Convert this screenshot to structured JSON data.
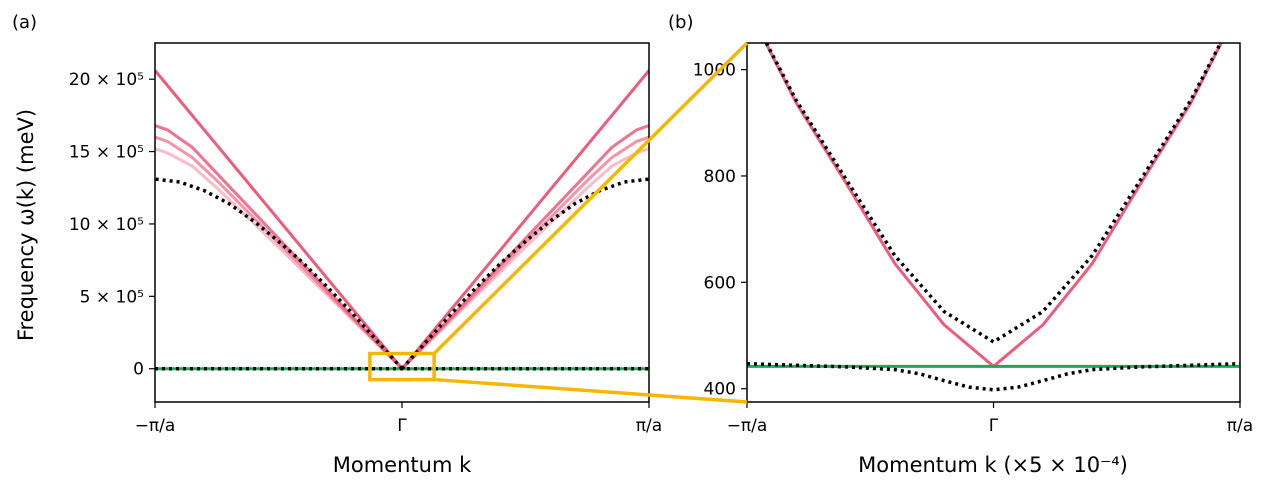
{
  "chart_data": [
    {
      "panel": "(a)",
      "type": "line",
      "xlabel": "Momentum k",
      "ylabel": "Frequency ω(k) (meV)",
      "ylim": [
        -230000,
        2250000
      ],
      "x_ticks": [
        {
          "value": -1,
          "label": "−π/a"
        },
        {
          "value": 0,
          "label": "Γ"
        },
        {
          "value": 1,
          "label": "π/a"
        }
      ],
      "y_ticks": [
        {
          "value": 0,
          "label": "0"
        },
        {
          "value": 500000,
          "label": "5 × 10⁵"
        },
        {
          "value": 1000000,
          "label": "10 × 10⁵"
        },
        {
          "value": 1500000,
          "label": "15 × 10⁵"
        },
        {
          "value": 2000000,
          "label": "20 × 10⁵"
        }
      ],
      "colors": {
        "pink": "#ef5b7b",
        "green": "#1aaa55",
        "dotted": "#000000",
        "zoom_box": "#f5b700"
      },
      "series": [
        {
          "style": "pink",
          "opacity": 1.0,
          "k": [
            0,
            0.25,
            0.5,
            0.75,
            1.0
          ],
          "values": [
            0,
            515000,
            1030000,
            1545000,
            2060000
          ]
        },
        {
          "style": "pink",
          "opacity": 0.85,
          "k": [
            0,
            0.25,
            0.5,
            0.75,
            0.85,
            0.95,
            1.0
          ],
          "values": [
            0,
            450000,
            900000,
            1350000,
            1530000,
            1650000,
            1680000
          ]
        },
        {
          "style": "pink",
          "opacity": 0.65,
          "k": [
            0,
            0.25,
            0.5,
            0.75,
            0.85,
            0.95,
            1.0
          ],
          "values": [
            0,
            435000,
            870000,
            1300000,
            1460000,
            1570000,
            1600000
          ]
        },
        {
          "style": "pink",
          "opacity": 0.4,
          "k": [
            0,
            0.25,
            0.5,
            0.75,
            0.85,
            0.95,
            1.0
          ],
          "values": [
            0,
            420000,
            840000,
            1250000,
            1400000,
            1490000,
            1520000
          ]
        },
        {
          "style": "dotted",
          "k": [
            0,
            0.1,
            0.2,
            0.3,
            0.4,
            0.5,
            0.6,
            0.7,
            0.8,
            0.9,
            1.0
          ],
          "values": [
            0,
            190000,
            380000,
            560000,
            730000,
            880000,
            1020000,
            1140000,
            1230000,
            1290000,
            1310000
          ]
        },
        {
          "style": "green",
          "k": [
            -1,
            1
          ],
          "values": [
            0,
            0
          ]
        },
        {
          "style": "dotted",
          "k": [
            -1,
            1
          ],
          "values": [
            0,
            0
          ]
        }
      ]
    },
    {
      "panel": "(b)",
      "type": "line",
      "xlabel": "Momentum k (×5 × 10⁻⁴)",
      "ylim": [
        375,
        1050
      ],
      "x_ticks": [
        {
          "value": -1,
          "label": "−π/a"
        },
        {
          "value": 0,
          "label": "Γ"
        },
        {
          "value": 1,
          "label": "π/a"
        }
      ],
      "y_ticks": [
        {
          "value": 400,
          "label": "400"
        },
        {
          "value": 600,
          "label": "600"
        },
        {
          "value": 800,
          "label": "800"
        },
        {
          "value": 1000,
          "label": "1000"
        }
      ],
      "series": [
        {
          "style": "pink",
          "k": [
            -1,
            -0.8,
            -0.6,
            -0.4,
            -0.2,
            0,
            0.2,
            0.4,
            0.6,
            0.8,
            1
          ],
          "values": [
            1120,
            937,
            788,
            635,
            520,
            442,
            520,
            635,
            788,
            937,
            1120
          ]
        },
        {
          "style": "dotted",
          "k": [
            -1,
            -0.8,
            -0.6,
            -0.4,
            -0.2,
            0,
            0.2,
            0.4,
            0.6,
            0.8,
            1
          ],
          "values": [
            1120,
            942,
            795,
            650,
            545,
            488,
            545,
            650,
            795,
            942,
            1120
          ]
        },
        {
          "style": "green",
          "k": [
            -1,
            1
          ],
          "values": [
            442,
            442
          ]
        },
        {
          "style": "dotted",
          "k": [
            -1,
            -0.8,
            -0.6,
            -0.4,
            -0.3,
            -0.2,
            -0.1,
            0,
            0.1,
            0.2,
            0.3,
            0.4,
            0.6,
            0.8,
            1
          ],
          "values": [
            447,
            444,
            441,
            436,
            428,
            415,
            403,
            398,
            403,
            415,
            428,
            436,
            441,
            444,
            447
          ]
        }
      ]
    }
  ]
}
